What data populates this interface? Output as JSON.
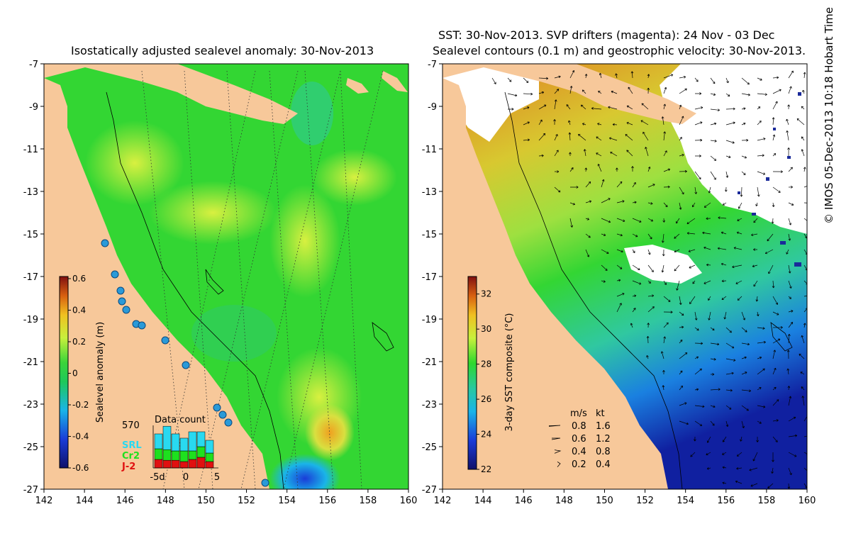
{
  "left_panel": {
    "title": "Isostatically adjusted sealevel anomaly: 30-Nov-2013",
    "colorbar": {
      "label": "Sealevel anomaly (m)",
      "ticks": [
        "0.6",
        "0.4",
        "0.2",
        "0",
        "-0.2",
        "-0.4",
        "-0.6"
      ],
      "min": -0.6,
      "max": 0.6
    },
    "data_count": {
      "title": "Data count",
      "max_label": "570",
      "legend": [
        {
          "name": "SRL",
          "color": "#29d9f0"
        },
        {
          "name": "Cr2",
          "color": "#1ee01e"
        },
        {
          "name": "J-2",
          "color": "#e01010"
        }
      ],
      "xticks": [
        "-5d",
        "0",
        "5"
      ],
      "bars": [
        {
          "srl": 0.35,
          "cr2": 0.25,
          "j2": 0.2
        },
        {
          "srl": 0.55,
          "cr2": 0.25,
          "j2": 0.18
        },
        {
          "srl": 0.4,
          "cr2": 0.22,
          "j2": 0.18
        },
        {
          "srl": 0.3,
          "cr2": 0.25,
          "j2": 0.15
        },
        {
          "srl": 0.45,
          "cr2": 0.2,
          "j2": 0.2
        },
        {
          "srl": 0.35,
          "cr2": 0.25,
          "j2": 0.25
        },
        {
          "srl": 0.3,
          "cr2": 0.2,
          "j2": 0.15
        }
      ]
    }
  },
  "right_panel": {
    "title_line1": "SST: 30-Nov-2013. SVP drifters (magenta): 24 Nov - 03 Dec",
    "title_line2": "Sealevel contours (0.1 m) and geostrophic velocity: 30-Nov-2013.",
    "colorbar": {
      "label": "3-day SST composite (°C)",
      "ticks": [
        "32",
        "30",
        "28",
        "26",
        "24",
        "22"
      ],
      "min": 22,
      "max": 33
    },
    "velocity_legend": {
      "header_ms": "m/s",
      "header_kt": "kt",
      "rows": [
        {
          "ms": "0.8",
          "kt": "1.6"
        },
        {
          "ms": "0.6",
          "kt": "1.2"
        },
        {
          "ms": "0.4",
          "kt": "0.8"
        },
        {
          "ms": "0.2",
          "kt": "0.4"
        }
      ]
    }
  },
  "axes": {
    "lon_ticks": [
      "142",
      "144",
      "146",
      "148",
      "150",
      "152",
      "154",
      "156",
      "158",
      "160"
    ],
    "lat_ticks": [
      "-7",
      "-9",
      "-11",
      "-13",
      "-15",
      "-17",
      "-19",
      "-21",
      "-23",
      "-25",
      "-27"
    ],
    "lon_range": [
      142,
      160
    ],
    "lat_range": [
      -27,
      -7
    ]
  },
  "credit": "© IMOS 05-Dec-2013 10:18 Hobart Time",
  "colors": {
    "land": "#f7c89a",
    "ocean_green": "#33d633",
    "ocean_yellow": "#c8f03c",
    "ocean_cyan": "#30c8a0",
    "deep_blue": "#1020a0",
    "sst_orange": "#e07820",
    "sst_yellow": "#d8d830"
  }
}
